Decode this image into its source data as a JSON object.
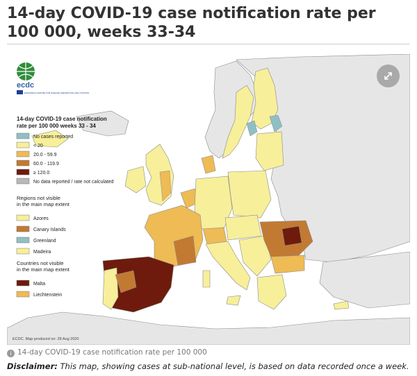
{
  "page_title": "14-day COVID-19 case notification rate per 100 000, weeks 33-34",
  "map": {
    "org_logo": {
      "name": "ecdc",
      "subtitle": "EUROPEAN CENTRE FOR DISEASE PREVENTION AND CONTROL"
    },
    "legend": {
      "title_line1": "14-day COVID-19 case notification",
      "title_line2": "rate per 100 000 weeks 33 - 34",
      "classes": [
        {
          "label": "No cases reported",
          "color": "#8fbfc4"
        },
        {
          "label": "< 20",
          "color": "#f7ef9a"
        },
        {
          "label": "20.0 - 59.9",
          "color": "#eebb55"
        },
        {
          "label": "60.0 - 119.9",
          "color": "#c27a32"
        },
        {
          "label": "≥ 120.0",
          "color": "#6e1b0d"
        },
        {
          "label": "No data reported / rate not calculated",
          "color": "#b8b8b8"
        }
      ],
      "regions_heading_line1": "Regions not visible",
      "regions_heading_line2": "in the main map extent",
      "regions": [
        {
          "label": "Azores",
          "color": "#f7ef9a"
        },
        {
          "label": "Canary Islands",
          "color": "#c27a32"
        },
        {
          "label": "Greenland",
          "color": "#8fbfc4"
        },
        {
          "label": "Madeira",
          "color": "#f7ef9a"
        }
      ],
      "countries_heading_line1": "Countries not visible",
      "countries_heading_line2": "in the main map extent",
      "countries": [
        {
          "label": "Malta",
          "color": "#6e1b0d"
        },
        {
          "label": "Liechtenstein",
          "color": "#eebb55"
        }
      ]
    },
    "production_note": "ECDC. Map produced on: 28 Aug 2020",
    "colors": {
      "sea": "#ffffff",
      "non_eu_land": "#e6e6e6",
      "border": "#777777"
    },
    "expand_icon": "expand-arrows-icon"
  },
  "caption": "14-day COVID-19 case notification rate per 100 000",
  "disclaimer": {
    "label": "Disclaimer:",
    "text": " This map, showing cases at sub-national level, is based on data recorded once a week."
  }
}
